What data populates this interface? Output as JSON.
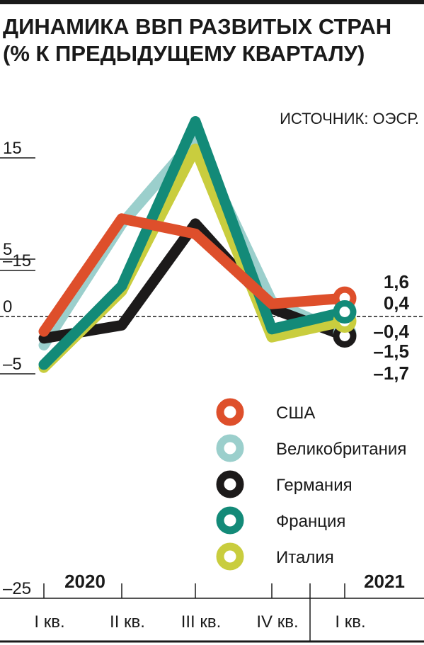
{
  "chart_data": {
    "type": "line",
    "title_line1": "ДИНАМИКА ВВП РАЗВИТЫХ СТРАН",
    "title_line2": "(% К ПРЕДЫДУЩЕМУ КВАРТАЛУ)",
    "source": "ИСТОЧНИК: ОЭСР.",
    "categories": [
      "I кв.",
      "II кв.",
      "III кв.",
      "IV кв.",
      "I кв."
    ],
    "years": [
      "2020",
      "2021"
    ],
    "y_ticks": [
      15,
      5,
      0,
      -5,
      -15,
      -25
    ],
    "y_tick_labels": [
      "15",
      "5",
      "0",
      "–5",
      "–15",
      "–25"
    ],
    "ylim": [
      -25,
      19
    ],
    "grid": false,
    "legend_position": "bottom-right",
    "series": [
      {
        "name": "Великобритания",
        "color": "#9bcfcc",
        "values": [
          -2.5,
          -19.5,
          16.9,
          1.3,
          -1.5
        ]
      },
      {
        "name": "Германия",
        "color": "#1c1a1a",
        "values": [
          -1.9,
          -9.7,
          8.5,
          0.7,
          -1.7
        ]
      },
      {
        "name": "Италия",
        "color": "#c9cd3e",
        "values": [
          -5.6,
          -13.0,
          15.9,
          -1.8,
          -0.4
        ]
      },
      {
        "name": "Франция",
        "color": "#138a78",
        "values": [
          -5.9,
          -13.5,
          18.6,
          -1.1,
          0.4
        ]
      },
      {
        "name": "США",
        "color": "#de4f2b",
        "values": [
          -1.3,
          9.0,
          7.5,
          1.1,
          1.6
        ]
      }
    ],
    "legend": [
      {
        "name": "США",
        "color": "#de4f2b"
      },
      {
        "name": "Великобритания",
        "color": "#9bcfcc"
      },
      {
        "name": "Германия",
        "color": "#1c1a1a"
      },
      {
        "name": "Франция",
        "color": "#138a78"
      },
      {
        "name": "Италия",
        "color": "#c9cd3e"
      }
    ],
    "end_labels": [
      "1,6",
      "0,4",
      "–0,4",
      "–1,5",
      "–1,7"
    ]
  }
}
